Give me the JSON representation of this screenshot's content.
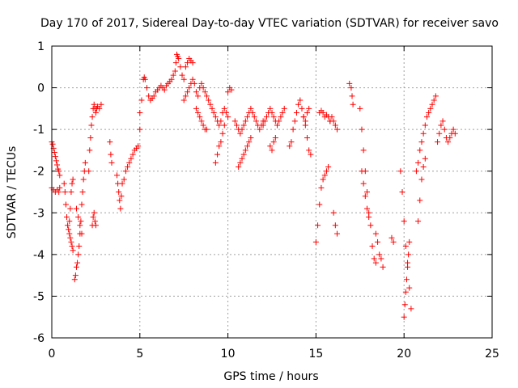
{
  "chart_data": {
    "type": "scatter",
    "title": "Day 170 of 2017, Sidereal Day-to-day VTEC variation (SDTVAR) for receiver savo",
    "xlabel": "GPS time / hours",
    "ylabel": "SDTVAR / TECUs",
    "xlim": [
      0,
      25
    ],
    "ylim": [
      -6,
      1
    ],
    "xticks": [
      0,
      5,
      10,
      15,
      20,
      25
    ],
    "yticks": [
      -6,
      -5,
      -4,
      -3,
      -2,
      -1,
      0,
      1
    ],
    "grid": true,
    "marker": "+",
    "color": "#ff0000",
    "series": [
      {
        "name": "SDTVAR",
        "x": [
          0.0,
          0.05,
          0.1,
          0.15,
          0.2,
          0.25,
          0.3,
          0.35,
          0.4,
          0.45,
          0.0,
          0.1,
          0.2,
          0.3,
          0.4,
          0.45,
          0.7,
          0.75,
          0.8,
          0.85,
          0.9,
          0.95,
          1.0,
          1.05,
          1.1,
          1.15,
          1.2,
          1.0,
          1.05,
          1.1,
          1.15,
          1.2,
          1.3,
          1.35,
          1.4,
          1.45,
          1.5,
          1.55,
          1.6,
          1.65,
          1.7,
          1.75,
          1.8,
          1.85,
          1.9,
          1.4,
          1.5,
          1.6,
          1.7,
          2.1,
          2.15,
          2.2,
          2.25,
          2.3,
          2.35,
          2.4,
          2.45,
          2.5,
          2.55,
          2.6,
          2.7,
          2.8,
          2.3,
          2.35,
          2.4,
          2.45,
          2.5,
          3.3,
          3.35,
          3.4,
          3.7,
          3.75,
          3.8,
          3.85,
          3.9,
          3.95,
          4.0,
          4.1,
          4.2,
          4.3,
          4.4,
          4.5,
          4.6,
          4.7,
          4.8,
          4.9,
          5.0,
          5.0,
          5.1,
          5.2,
          5.25,
          5.3,
          5.4,
          5.5,
          5.6,
          5.7,
          5.8,
          5.9,
          6.0,
          6.1,
          6.2,
          6.3,
          6.4,
          6.5,
          6.6,
          6.7,
          6.8,
          6.9,
          7.0,
          7.05,
          7.1,
          7.15,
          7.2,
          7.3,
          7.4,
          7.5,
          7.6,
          7.7,
          7.8,
          7.9,
          8.0,
          7.5,
          7.6,
          7.7,
          7.8,
          7.9,
          8.0,
          8.1,
          8.2,
          8.3,
          8.4,
          8.5,
          8.6,
          8.7,
          8.8,
          8.9,
          8.2,
          8.3,
          8.4,
          8.5,
          8.6,
          8.7,
          8.8,
          9.0,
          9.1,
          9.2,
          9.3,
          9.4,
          9.5,
          9.6,
          9.7,
          9.8,
          9.9,
          10.0,
          9.3,
          9.4,
          9.5,
          9.6,
          9.7,
          9.8,
          10.0,
          10.1,
          10.2,
          10.4,
          10.5,
          10.6,
          10.7,
          10.8,
          10.9,
          11.0,
          11.1,
          11.2,
          11.3,
          11.4,
          11.5,
          11.6,
          11.7,
          11.8,
          11.9,
          12.0,
          10.6,
          10.7,
          10.8,
          10.9,
          11.0,
          11.1,
          11.2,
          11.3,
          12.0,
          12.1,
          12.2,
          12.3,
          12.4,
          12.5,
          12.6,
          12.7,
          12.8,
          12.9,
          13.0,
          13.1,
          13.2,
          12.4,
          12.5,
          12.6,
          12.7,
          13.5,
          13.6,
          13.7,
          13.8,
          13.9,
          14.0,
          14.1,
          14.2,
          14.3,
          14.4,
          14.5,
          14.6,
          14.7,
          14.3,
          14.4,
          14.5,
          14.6,
          15.0,
          15.1,
          15.2,
          15.3,
          15.4,
          15.5,
          15.6,
          15.7,
          15.8,
          15.9,
          16.0,
          16.1,
          16.2,
          15.2,
          15.3,
          15.4,
          15.5,
          15.6,
          15.7,
          15.8,
          16.0,
          16.1,
          16.2,
          16.9,
          17.0,
          17.05,
          17.1,
          17.5,
          17.6,
          17.7,
          17.8,
          17.9,
          18.0,
          18.1,
          18.2,
          18.3,
          18.4,
          17.6,
          17.7,
          17.8,
          17.9,
          18.0,
          18.4,
          18.5,
          18.6,
          18.7,
          18.8,
          19.3,
          19.4,
          19.8,
          19.9,
          20.0,
          20.1,
          20.2,
          20.3,
          20.4,
          20.0,
          20.05,
          20.1,
          20.15,
          20.2,
          20.25,
          20.3,
          20.7,
          20.8,
          20.9,
          21.0,
          21.1,
          21.2,
          21.3,
          21.4,
          21.5,
          21.6,
          21.7,
          21.8,
          20.8,
          20.9,
          21.0,
          21.1,
          21.2,
          21.9,
          22.0,
          22.1,
          22.2,
          22.3,
          22.4,
          22.5,
          22.6,
          22.7,
          22.8,
          22.9
        ],
        "y": [
          -1.3,
          -1.35,
          -1.45,
          -1.55,
          -1.65,
          -1.75,
          -1.85,
          -1.95,
          -2.0,
          -2.1,
          -2.4,
          -2.45,
          -2.5,
          -2.45,
          -2.5,
          -2.4,
          -2.3,
          -2.5,
          -2.8,
          -3.1,
          -3.3,
          -3.4,
          -3.2,
          -2.9,
          -2.5,
          -2.3,
          -2.2,
          -3.5,
          -3.6,
          -3.7,
          -3.8,
          -3.9,
          -4.6,
          -4.5,
          -4.3,
          -4.2,
          -4.0,
          -3.8,
          -3.5,
          -3.2,
          -2.8,
          -2.5,
          -2.2,
          -2.0,
          -1.8,
          -2.9,
          -3.1,
          -3.3,
          -3.5,
          -2.0,
          -1.5,
          -1.2,
          -0.9,
          -0.7,
          -0.5,
          -0.4,
          -0.5,
          -0.6,
          -0.5,
          -0.45,
          -0.5,
          -0.4,
          -3.3,
          -3.1,
          -3.0,
          -3.2,
          -3.3,
          -1.3,
          -1.6,
          -1.8,
          -2.1,
          -2.3,
          -2.5,
          -2.7,
          -2.9,
          -2.6,
          -2.3,
          -2.2,
          -2.0,
          -1.9,
          -1.8,
          -1.7,
          -1.6,
          -1.5,
          -1.45,
          -1.4,
          -1.0,
          -0.6,
          -0.3,
          0.2,
          0.25,
          0.2,
          0.0,
          -0.2,
          -0.3,
          -0.25,
          -0.2,
          -0.1,
          -0.05,
          0.0,
          0.05,
          0.0,
          -0.05,
          0.05,
          0.1,
          0.15,
          0.2,
          0.3,
          0.4,
          0.6,
          0.8,
          0.75,
          0.7,
          0.5,
          0.3,
          0.2,
          0.5,
          0.6,
          0.7,
          0.65,
          0.6,
          -0.3,
          -0.2,
          -0.1,
          0.0,
          0.1,
          0.2,
          0.1,
          -0.1,
          -0.2,
          0.0,
          0.1,
          0.0,
          -0.1,
          -0.2,
          -0.3,
          -0.5,
          -0.6,
          -0.7,
          -0.8,
          -0.9,
          -1.0,
          -1.0,
          -0.4,
          -0.5,
          -0.6,
          -0.7,
          -0.8,
          -0.9,
          -0.8,
          -0.6,
          -0.5,
          -0.6,
          -0.7,
          -1.8,
          -1.6,
          -1.4,
          -1.3,
          -1.1,
          -0.9,
          -0.1,
          0.0,
          -0.05,
          -0.8,
          -0.9,
          -1.0,
          -1.1,
          -1.0,
          -0.9,
          -0.8,
          -0.7,
          -0.6,
          -0.5,
          -0.6,
          -0.7,
          -0.8,
          -0.9,
          -1.0,
          -0.9,
          -0.8,
          -1.9,
          -1.8,
          -1.7,
          -1.6,
          -1.5,
          -1.4,
          -1.3,
          -1.2,
          -0.9,
          -0.8,
          -0.7,
          -0.6,
          -0.5,
          -0.6,
          -0.7,
          -0.8,
          -0.9,
          -0.8,
          -0.7,
          -0.6,
          -0.5,
          -1.4,
          -1.5,
          -1.3,
          -1.2,
          -1.4,
          -1.3,
          -1.0,
          -0.8,
          -0.6,
          -0.4,
          -0.3,
          -0.5,
          -0.7,
          -0.9,
          -1.2,
          -1.5,
          -1.6,
          -0.7,
          -0.8,
          -0.6,
          -0.5,
          -3.7,
          -3.3,
          -2.8,
          -2.4,
          -2.2,
          -2.1,
          -2.0,
          -1.9,
          -0.8,
          -0.7,
          -0.8,
          -0.9,
          -1.0,
          -0.6,
          -0.55,
          -0.6,
          -0.7,
          -0.65,
          -0.7,
          -0.8,
          -3.0,
          -3.3,
          -3.5,
          0.1,
          0.0,
          -0.2,
          -0.4,
          -0.5,
          -1.0,
          -1.5,
          -2.0,
          -2.5,
          -3.0,
          -3.3,
          -3.8,
          -4.1,
          -4.2,
          -2.0,
          -2.3,
          -2.6,
          -2.9,
          -3.1,
          -3.5,
          -3.7,
          -4.0,
          -4.1,
          -4.3,
          -3.6,
          -3.7,
          -2.0,
          -2.5,
          -3.2,
          -3.8,
          -4.2,
          -4.8,
          -5.3,
          -5.5,
          -5.2,
          -4.9,
          -4.6,
          -4.3,
          -4.0,
          -3.7,
          -2.0,
          -1.8,
          -1.5,
          -1.3,
          -1.1,
          -0.9,
          -0.7,
          -0.6,
          -0.5,
          -0.4,
          -0.3,
          -0.2,
          -3.2,
          -2.7,
          -2.2,
          -1.9,
          -1.7,
          -1.3,
          -1.1,
          -0.9,
          -0.8,
          -1.0,
          -1.2,
          -1.3,
          -1.2,
          -1.1,
          -1.0,
          -1.1
        ]
      }
    ]
  }
}
